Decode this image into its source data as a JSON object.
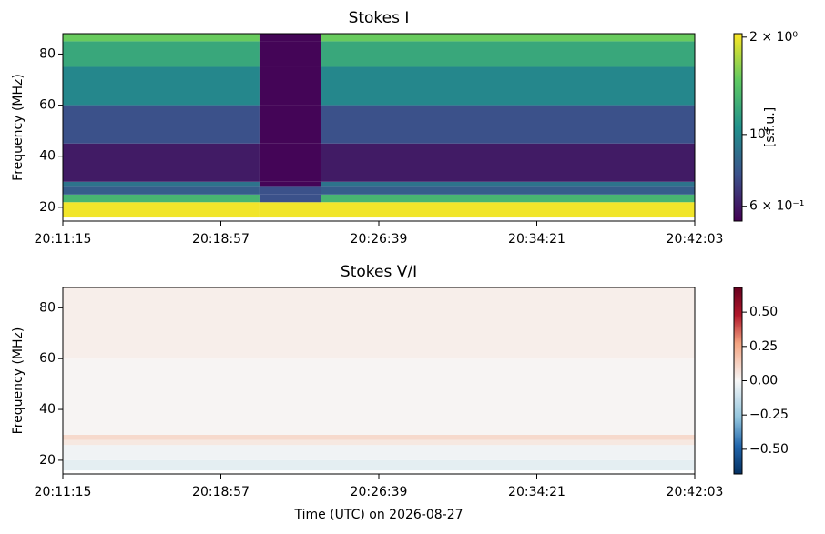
{
  "chart_data": [
    {
      "type": "heatmap",
      "title": "Stokes I",
      "ylabel": "Frequency (MHz)",
      "x_edges": [
        72675,
        73250,
        73429,
        74523
      ],
      "y_edges": [
        16,
        22,
        25,
        28,
        30,
        45,
        60,
        75,
        85,
        88
      ],
      "z": [
        [
          2.0,
          2.0,
          2.0
        ],
        [
          1.3,
          0.75,
          1.3
        ],
        [
          0.8,
          0.75,
          0.8
        ],
        [
          0.9,
          0.55,
          0.9
        ],
        [
          0.6,
          0.55,
          0.6
        ],
        [
          0.75,
          0.55,
          0.75
        ],
        [
          1.0,
          0.55,
          1.0
        ],
        [
          1.2,
          0.55,
          1.2
        ],
        [
          1.5,
          0.55,
          1.5
        ]
      ],
      "xlim": [
        72675,
        74523
      ],
      "xticks": [
        {
          "value": 72675,
          "label": "20:11:15"
        },
        {
          "value": 73137,
          "label": "20:18:57"
        },
        {
          "value": 73599,
          "label": "20:26:39"
        },
        {
          "value": 74061,
          "label": "20:34:21"
        },
        {
          "value": 74523,
          "label": "20:42:03"
        }
      ],
      "ylim": [
        14.6,
        88
      ],
      "yticks": [
        20,
        40,
        60,
        80
      ],
      "colormap": "viridis",
      "zscale": "log",
      "zlim": [
        0.54,
        2.05
      ],
      "zticks": [
        {
          "value": 2,
          "label": "2 × 10⁰"
        },
        {
          "value": 1,
          "label": "10⁰"
        },
        {
          "value": 0.6,
          "label": "6 × 10⁻¹"
        }
      ],
      "colorbar_label": "[s.f.u.]"
    },
    {
      "type": "heatmap",
      "title": "Stokes V/I",
      "ylabel": "Frequency (MHz)",
      "xlabel": "Time (UTC) on 2026-08-27",
      "x_edges": [
        72675,
        74523
      ],
      "y_edges": [
        16,
        20,
        26,
        28,
        30,
        60,
        88
      ],
      "z": [
        [
          -0.05
        ],
        [
          -0.02
        ],
        [
          0.05
        ],
        [
          0.1
        ],
        [
          0.01
        ],
        [
          0.03
        ]
      ],
      "xlim": [
        72675,
        74523
      ],
      "xticks": [
        {
          "value": 72675,
          "label": "20:11:15"
        },
        {
          "value": 73137,
          "label": "20:18:57"
        },
        {
          "value": 73599,
          "label": "20:26:39"
        },
        {
          "value": 74061,
          "label": "20:34:21"
        },
        {
          "value": 74523,
          "label": "20:42:03"
        }
      ],
      "ylim": [
        14.6,
        88
      ],
      "yticks": [
        20,
        40,
        60,
        80
      ],
      "colormap": "RdBu_r",
      "zscale": "linear",
      "zlim": [
        -0.68,
        0.68
      ],
      "zticks": [
        {
          "value": -0.5,
          "label": "−0.50"
        },
        {
          "value": -0.25,
          "label": "−0.25"
        },
        {
          "value": 0,
          "label": "0.00"
        },
        {
          "value": 0.25,
          "label": "0.25"
        },
        {
          "value": 0.5,
          "label": "0.50"
        }
      ]
    }
  ]
}
